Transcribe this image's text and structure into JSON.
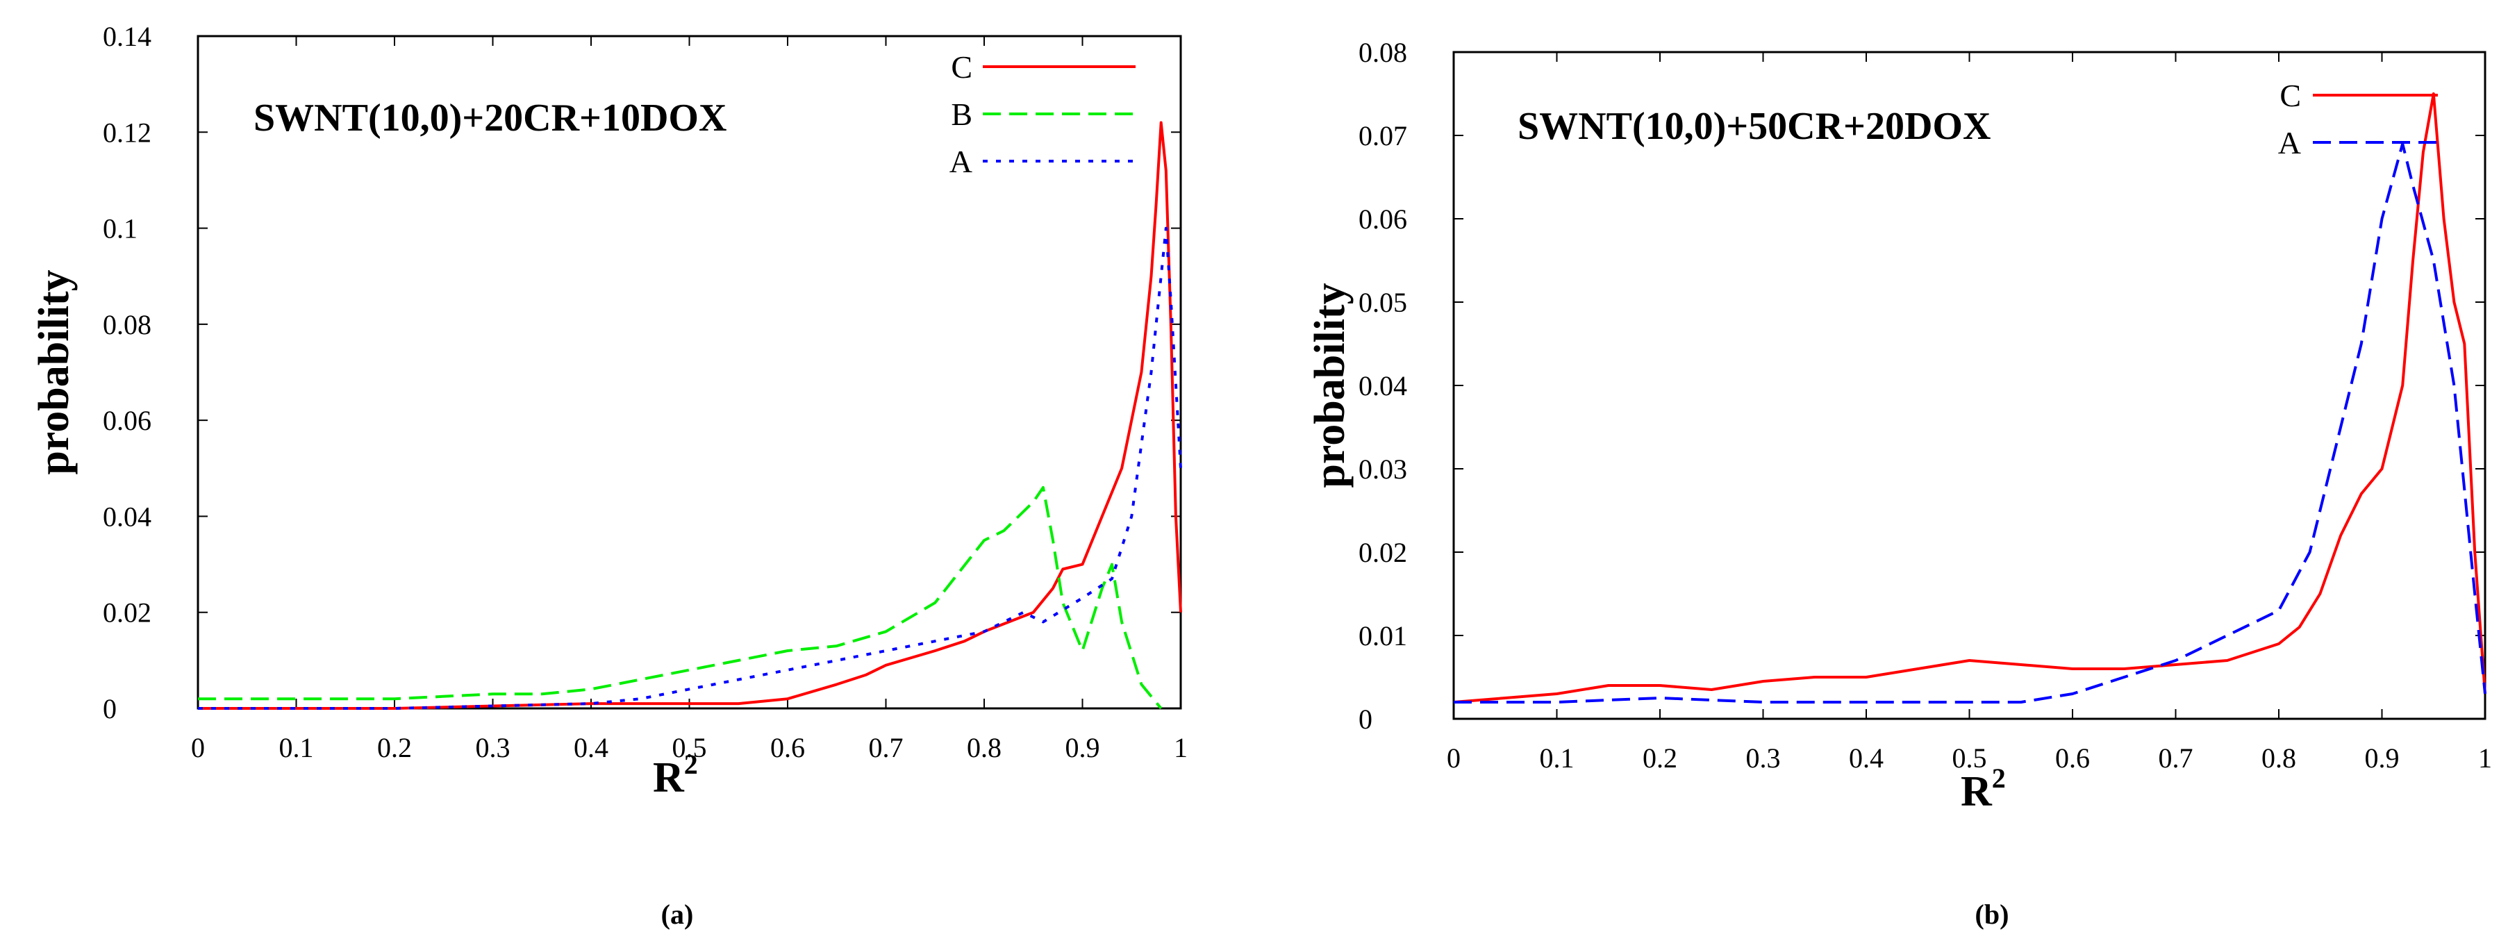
{
  "chart_data": [
    {
      "type": "line",
      "panel": "a",
      "caption": "(a)",
      "title": "SWNT(10,0)+20CR+10DOX",
      "xlabel": "R",
      "xlabel_sup": "2",
      "ylabel": "probability",
      "xlim": [
        0,
        1
      ],
      "ylim": [
        0,
        0.14
      ],
      "xticks": [
        "0",
        "0.1",
        "0.2",
        "0.3",
        "0.4",
        "0.5",
        "0.6",
        "0.7",
        "0.8",
        "0.9",
        "1"
      ],
      "yticks": [
        "0",
        "0.02",
        "0.04",
        "0.06",
        "0.08",
        "0.1",
        "0.12",
        "0.14"
      ],
      "legend_position": "top-right",
      "series": [
        {
          "name": "C",
          "color": "#ff0000",
          "dash": "solid",
          "points": [
            [
              0.0,
              0.0
            ],
            [
              0.2,
              0.0
            ],
            [
              0.3,
              0.0005
            ],
            [
              0.4,
              0.001
            ],
            [
              0.5,
              0.001
            ],
            [
              0.55,
              0.001
            ],
            [
              0.6,
              0.002
            ],
            [
              0.65,
              0.005
            ],
            [
              0.68,
              0.007
            ],
            [
              0.7,
              0.009
            ],
            [
              0.75,
              0.012
            ],
            [
              0.78,
              0.014
            ],
            [
              0.8,
              0.016
            ],
            [
              0.85,
              0.02
            ],
            [
              0.87,
              0.025
            ],
            [
              0.88,
              0.029
            ],
            [
              0.9,
              0.03
            ],
            [
              0.92,
              0.04
            ],
            [
              0.94,
              0.05
            ],
            [
              0.96,
              0.07
            ],
            [
              0.97,
              0.09
            ],
            [
              0.975,
              0.105
            ],
            [
              0.98,
              0.122
            ],
            [
              0.985,
              0.112
            ],
            [
              0.99,
              0.08
            ],
            [
              0.995,
              0.04
            ],
            [
              1.0,
              0.02
            ]
          ]
        },
        {
          "name": "B",
          "color": "#00ee00",
          "dash": "dashed",
          "points": [
            [
              0.0,
              0.002
            ],
            [
              0.1,
              0.002
            ],
            [
              0.2,
              0.002
            ],
            [
              0.3,
              0.003
            ],
            [
              0.35,
              0.003
            ],
            [
              0.4,
              0.004
            ],
            [
              0.45,
              0.006
            ],
            [
              0.5,
              0.008
            ],
            [
              0.55,
              0.01
            ],
            [
              0.6,
              0.012
            ],
            [
              0.65,
              0.013
            ],
            [
              0.7,
              0.016
            ],
            [
              0.75,
              0.022
            ],
            [
              0.8,
              0.035
            ],
            [
              0.82,
              0.037
            ],
            [
              0.85,
              0.043
            ],
            [
              0.86,
              0.046
            ],
            [
              0.87,
              0.035
            ],
            [
              0.88,
              0.022
            ],
            [
              0.9,
              0.012
            ],
            [
              0.92,
              0.025
            ],
            [
              0.93,
              0.03
            ],
            [
              0.94,
              0.018
            ],
            [
              0.96,
              0.005
            ],
            [
              0.98,
              0.0
            ]
          ]
        },
        {
          "name": "A",
          "color": "#0000ff",
          "dash": "dotted",
          "points": [
            [
              0.0,
              0.0
            ],
            [
              0.2,
              0.0
            ],
            [
              0.3,
              0.0005
            ],
            [
              0.4,
              0.001
            ],
            [
              0.45,
              0.002
            ],
            [
              0.5,
              0.004
            ],
            [
              0.55,
              0.006
            ],
            [
              0.6,
              0.008
            ],
            [
              0.65,
              0.01
            ],
            [
              0.7,
              0.012
            ],
            [
              0.75,
              0.014
            ],
            [
              0.8,
              0.016
            ],
            [
              0.84,
              0.02
            ],
            [
              0.86,
              0.018
            ],
            [
              0.9,
              0.023
            ],
            [
              0.93,
              0.027
            ],
            [
              0.95,
              0.04
            ],
            [
              0.96,
              0.055
            ],
            [
              0.97,
              0.07
            ],
            [
              0.98,
              0.09
            ],
            [
              0.985,
              0.1
            ],
            [
              0.99,
              0.085
            ],
            [
              1.0,
              0.05
            ]
          ]
        }
      ]
    },
    {
      "type": "line",
      "panel": "b",
      "caption": "(b)",
      "title": "SWNT(10,0)+50CR+20DOX",
      "xlabel": "R",
      "xlabel_sup": "2",
      "ylabel": "probability",
      "xlim": [
        0,
        1
      ],
      "ylim": [
        0,
        0.08
      ],
      "xticks": [
        "0",
        "0.1",
        "0.2",
        "0.3",
        "0.4",
        "0.5",
        "0.6",
        "0.7",
        "0.8",
        "0.9",
        "1"
      ],
      "yticks": [
        "0",
        "0.01",
        "0.02",
        "0.03",
        "0.04",
        "0.05",
        "0.06",
        "0.07",
        "0.08"
      ],
      "legend_position": "top-right",
      "series": [
        {
          "name": "C",
          "color": "#ff0000",
          "dash": "solid",
          "points": [
            [
              0.0,
              0.002
            ],
            [
              0.05,
              0.0025
            ],
            [
              0.1,
              0.003
            ],
            [
              0.15,
              0.004
            ],
            [
              0.2,
              0.004
            ],
            [
              0.25,
              0.0035
            ],
            [
              0.3,
              0.0045
            ],
            [
              0.35,
              0.005
            ],
            [
              0.4,
              0.005
            ],
            [
              0.45,
              0.006
            ],
            [
              0.5,
              0.007
            ],
            [
              0.55,
              0.0065
            ],
            [
              0.6,
              0.006
            ],
            [
              0.65,
              0.006
            ],
            [
              0.7,
              0.0065
            ],
            [
              0.75,
              0.007
            ],
            [
              0.8,
              0.009
            ],
            [
              0.82,
              0.011
            ],
            [
              0.84,
              0.015
            ],
            [
              0.86,
              0.022
            ],
            [
              0.88,
              0.027
            ],
            [
              0.9,
              0.03
            ],
            [
              0.92,
              0.04
            ],
            [
              0.93,
              0.055
            ],
            [
              0.94,
              0.068
            ],
            [
              0.95,
              0.075
            ],
            [
              0.96,
              0.06
            ],
            [
              0.97,
              0.05
            ],
            [
              0.98,
              0.045
            ],
            [
              0.99,
              0.02
            ],
            [
              1.0,
              0.003
            ]
          ]
        },
        {
          "name": "A",
          "color": "#0000ff",
          "dash": "dashed",
          "points": [
            [
              0.0,
              0.002
            ],
            [
              0.05,
              0.002
            ],
            [
              0.1,
              0.002
            ],
            [
              0.2,
              0.0025
            ],
            [
              0.3,
              0.002
            ],
            [
              0.4,
              0.002
            ],
            [
              0.5,
              0.002
            ],
            [
              0.55,
              0.002
            ],
            [
              0.6,
              0.003
            ],
            [
              0.65,
              0.005
            ],
            [
              0.7,
              0.007
            ],
            [
              0.75,
              0.01
            ],
            [
              0.8,
              0.013
            ],
            [
              0.83,
              0.02
            ],
            [
              0.86,
              0.035
            ],
            [
              0.88,
              0.045
            ],
            [
              0.9,
              0.06
            ],
            [
              0.92,
              0.069
            ],
            [
              0.93,
              0.064
            ],
            [
              0.95,
              0.055
            ],
            [
              0.97,
              0.04
            ],
            [
              0.99,
              0.015
            ],
            [
              1.0,
              0.003
            ]
          ]
        }
      ]
    }
  ]
}
